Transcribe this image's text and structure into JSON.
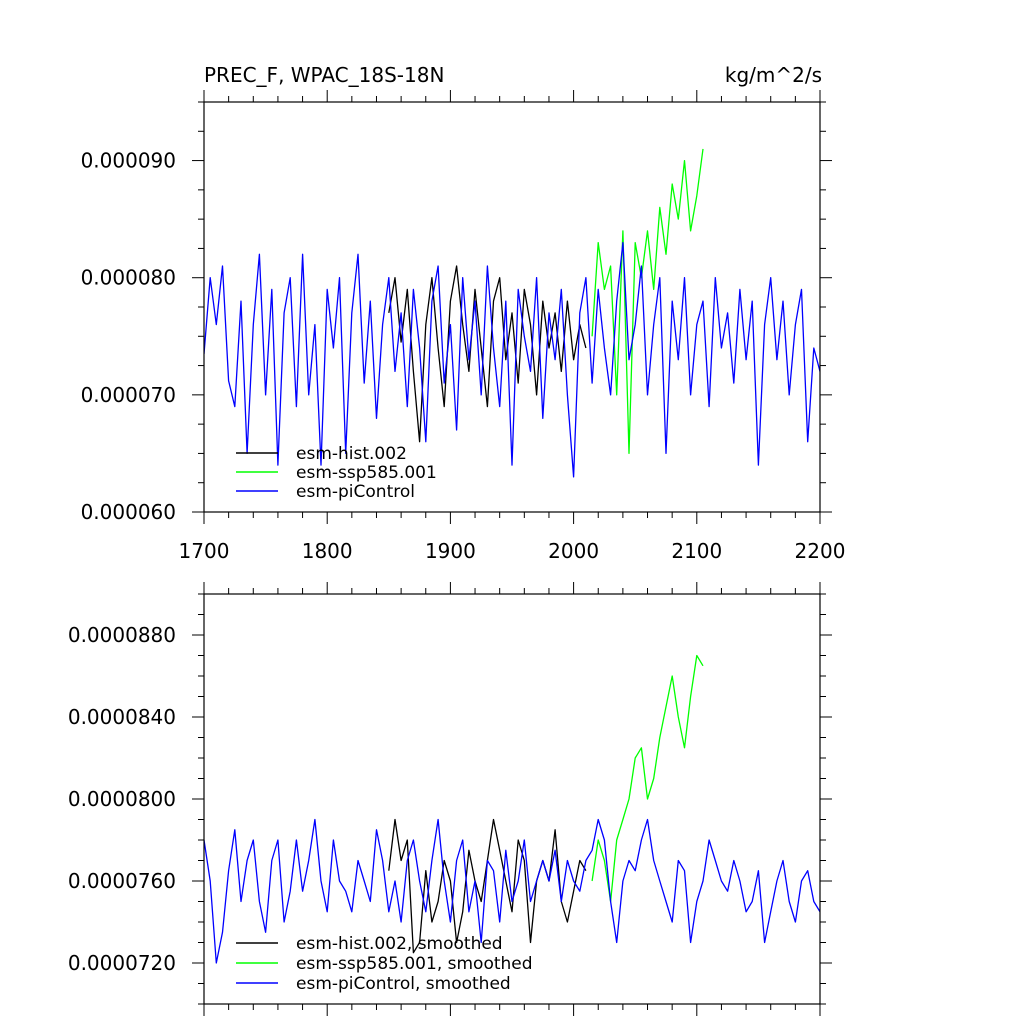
{
  "chart_data": [
    {
      "type": "line",
      "title": "PREC_F, WPAC_18S-18N",
      "units": "kg/m^2/s",
      "xlabel": "",
      "ylabel": "",
      "xlim": [
        1700,
        2200
      ],
      "ylim": [
        6e-05,
        9.5e-05
      ],
      "x_ticks": [
        1700,
        1800,
        1900,
        2000,
        2100,
        2200
      ],
      "x_tick_labels": [
        "1700",
        "1800",
        "1900",
        "2000",
        "2100",
        "2200"
      ],
      "y_ticks": [
        6e-05,
        7e-05,
        8e-05,
        9e-05
      ],
      "y_tick_labels": [
        "0.000060",
        "0.000070",
        "0.000080",
        "0.000090"
      ],
      "legend_position": "bottom-left",
      "series": [
        {
          "name": "esm-hist.002",
          "color": "#000000",
          "x_start": 1850,
          "x_step": 5,
          "values": [
            7.7e-05,
            8e-05,
            7.45e-05,
            7.9e-05,
            7.2e-05,
            6.6e-05,
            7.6e-05,
            8e-05,
            7.4e-05,
            6.9e-05,
            7.8e-05,
            8.1e-05,
            7.6e-05,
            7.2e-05,
            7.9e-05,
            7.4e-05,
            6.9e-05,
            7.8e-05,
            8e-05,
            7.3e-05,
            7.7e-05,
            7.1e-05,
            7.9e-05,
            7.6e-05,
            7e-05,
            7.8e-05,
            7.4e-05,
            7.7e-05,
            7.2e-05,
            7.8e-05,
            7.3e-05,
            7.6e-05,
            7.4e-05
          ]
        },
        {
          "name": "esm-ssp585.001",
          "color": "#00ff00",
          "x_start": 2015,
          "x_step": 5,
          "values": [
            7.5e-05,
            8.3e-05,
            7.9e-05,
            8.1e-05,
            7e-05,
            8.4e-05,
            6.5e-05,
            8.3e-05,
            8e-05,
            8.4e-05,
            7.9e-05,
            8.6e-05,
            8.2e-05,
            8.8e-05,
            8.5e-05,
            9e-05,
            8.4e-05,
            8.7e-05,
            9.1e-05
          ]
        },
        {
          "name": "esm-piControl",
          "color": "#0000ff",
          "x_start": 1700,
          "x_step": 5,
          "values": [
            7.35e-05,
            8e-05,
            7.6e-05,
            8.1e-05,
            7.12e-05,
            6.9e-05,
            7.8e-05,
            6.5e-05,
            7.6e-05,
            8.2e-05,
            7e-05,
            7.9e-05,
            6.4e-05,
            7.7e-05,
            8e-05,
            6.9e-05,
            8.2e-05,
            7e-05,
            7.6e-05,
            6.4e-05,
            7.9e-05,
            7.4e-05,
            8e-05,
            6.5e-05,
            7.7e-05,
            8.2e-05,
            7.1e-05,
            7.8e-05,
            6.8e-05,
            7.6e-05,
            8e-05,
            7.2e-05,
            7.7e-05,
            6.9e-05,
            7.9e-05,
            7.4e-05,
            6.6e-05,
            7.8e-05,
            8.1e-05,
            7.1e-05,
            7.6e-05,
            6.7e-05,
            8e-05,
            7.3e-05,
            7.8e-05,
            7e-05,
            8.1e-05,
            7.4e-05,
            6.9e-05,
            7.8e-05,
            6.4e-05,
            7.9e-05,
            7.5e-05,
            7.2e-05,
            8e-05,
            6.8e-05,
            7.7e-05,
            7.3e-05,
            7.9e-05,
            7e-05,
            6.3e-05,
            7.7e-05,
            8e-05,
            7.1e-05,
            7.9e-05,
            7.4e-05,
            7e-05,
            7.8e-05,
            8.3e-05,
            7.3e-05,
            7.6e-05,
            8.1e-05,
            7e-05,
            7.6e-05,
            8e-05,
            6.5e-05,
            7.8e-05,
            7.3e-05,
            8e-05,
            7e-05,
            7.6e-05,
            7.8e-05,
            6.9e-05,
            8e-05,
            7.4e-05,
            7.7e-05,
            7.1e-05,
            7.9e-05,
            7.3e-05,
            7.8e-05,
            6.4e-05,
            7.6e-05,
            8e-05,
            7.3e-05,
            7.8e-05,
            7e-05,
            7.6e-05,
            7.9e-05,
            6.6e-05,
            7.4e-05,
            7.2e-05
          ]
        }
      ]
    },
    {
      "type": "line",
      "title": "",
      "xlabel": "",
      "ylabel": "",
      "xlim": [
        1700,
        2200
      ],
      "ylim": [
        7e-05,
        9e-05
      ],
      "y_ticks": [
        7.2e-05,
        7.6e-05,
        8e-05,
        8.4e-05,
        8.8e-05
      ],
      "y_tick_labels": [
        "0.0000720",
        "0.0000760",
        "0.0000800",
        "0.0000840",
        "0.0000880"
      ],
      "legend_position": "bottom-left",
      "series": [
        {
          "name": "esm-hist.002, smoothed",
          "color": "#000000",
          "x_start": 1850,
          "x_step": 5,
          "values": [
            7.65e-05,
            7.9e-05,
            7.7e-05,
            7.8e-05,
            7.25e-05,
            7.3e-05,
            7.65e-05,
            7.4e-05,
            7.5e-05,
            7.7e-05,
            7.6e-05,
            7.3e-05,
            7.45e-05,
            7.75e-05,
            7.6e-05,
            7.5e-05,
            7.7e-05,
            7.9e-05,
            7.75e-05,
            7.6e-05,
            7.45e-05,
            7.8e-05,
            7.7e-05,
            7.3e-05,
            7.6e-05,
            7.7e-05,
            7.6e-05,
            7.85e-05,
            7.5e-05,
            7.4e-05,
            7.55e-05,
            7.7e-05,
            7.65e-05
          ]
        },
        {
          "name": "esm-ssp585.001, smoothed",
          "color": "#00ff00",
          "x_start": 2015,
          "x_step": 5,
          "values": [
            7.6e-05,
            7.8e-05,
            7.7e-05,
            7.5e-05,
            7.8e-05,
            7.9e-05,
            8e-05,
            8.2e-05,
            8.25e-05,
            8e-05,
            8.1e-05,
            8.3e-05,
            8.45e-05,
            8.6e-05,
            8.4e-05,
            8.25e-05,
            8.5e-05,
            8.7e-05,
            8.65e-05
          ]
        },
        {
          "name": "esm-piControl, smoothed",
          "color": "#0000ff",
          "x_start": 1700,
          "x_step": 5,
          "values": [
            7.8e-05,
            7.6e-05,
            7.2e-05,
            7.35e-05,
            7.65e-05,
            7.85e-05,
            7.5e-05,
            7.7e-05,
            7.8e-05,
            7.5e-05,
            7.35e-05,
            7.7e-05,
            7.8e-05,
            7.4e-05,
            7.55e-05,
            7.8e-05,
            7.55e-05,
            7.7e-05,
            7.9e-05,
            7.6e-05,
            7.45e-05,
            7.8e-05,
            7.6e-05,
            7.55e-05,
            7.45e-05,
            7.7e-05,
            7.6e-05,
            7.5e-05,
            7.85e-05,
            7.7e-05,
            7.45e-05,
            7.6e-05,
            7.4e-05,
            7.7e-05,
            7.8e-05,
            7.6e-05,
            7.45e-05,
            7.7e-05,
            7.9e-05,
            7.6e-05,
            7.4e-05,
            7.7e-05,
            7.8e-05,
            7.45e-05,
            7.6e-05,
            7.3e-05,
            7.7e-05,
            7.65e-05,
            7.4e-05,
            7.75e-05,
            7.5e-05,
            7.6e-05,
            7.8e-05,
            7.5e-05,
            7.6e-05,
            7.7e-05,
            7.6e-05,
            7.75e-05,
            7.5e-05,
            7.7e-05,
            7.6e-05,
            7.55e-05,
            7.7e-05,
            7.75e-05,
            7.9e-05,
            7.8e-05,
            7.5e-05,
            7.3e-05,
            7.6e-05,
            7.7e-05,
            7.65e-05,
            7.8e-05,
            7.9e-05,
            7.7e-05,
            7.6e-05,
            7.5e-05,
            7.4e-05,
            7.7e-05,
            7.65e-05,
            7.3e-05,
            7.5e-05,
            7.6e-05,
            7.8e-05,
            7.7e-05,
            7.6e-05,
            7.55e-05,
            7.7e-05,
            7.6e-05,
            7.45e-05,
            7.5e-05,
            7.65e-05,
            7.3e-05,
            7.45e-05,
            7.6e-05,
            7.7e-05,
            7.5e-05,
            7.4e-05,
            7.6e-05,
            7.65e-05,
            7.5e-05,
            7.45e-05
          ]
        }
      ]
    }
  ]
}
